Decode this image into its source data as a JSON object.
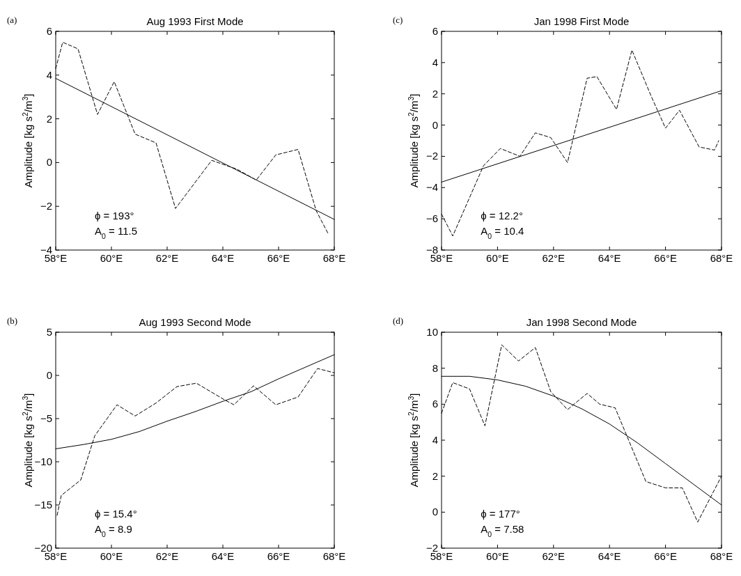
{
  "chart_data": [
    {
      "type": "line",
      "title": "Aug 1993 First Mode",
      "ylabel": "Amplitude [kg s$^{2}$/m$^{3}$]",
      "xlim": [
        58,
        68
      ],
      "xticks": [
        {
          "value": 58,
          "label": "58°E"
        },
        {
          "value": 60,
          "label": "60°E"
        },
        {
          "value": 62,
          "label": "62°E"
        },
        {
          "value": 64,
          "label": "64°E"
        },
        {
          "value": 66,
          "label": "66°E"
        },
        {
          "value": 68,
          "label": "68°E"
        }
      ],
      "ylim": [
        -4,
        6
      ],
      "yticks": [
        -4,
        -2,
        0,
        2,
        4,
        6
      ],
      "grid": false,
      "annotations": [
        "(a)",
        "ϕ = 193°",
        "A$_{0}$ = 11.5"
      ],
      "series": [
        {
          "color": "#000000",
          "line_style": "dashed",
          "x": [
            58.0,
            58.25,
            58.8,
            59.5,
            60.1,
            60.85,
            61.6,
            62.3,
            63.6,
            64.5,
            65.2,
            65.9,
            66.7,
            67.35,
            67.8
          ],
          "values": [
            4.3,
            5.5,
            5.2,
            2.2,
            3.7,
            1.3,
            0.9,
            -2.1,
            0.1,
            -0.3,
            -0.8,
            0.35,
            0.6,
            -2.2,
            -3.3
          ]
        },
        {
          "color": "#000000",
          "line_style": "solid",
          "x": [
            58,
            68
          ],
          "values": [
            3.85,
            -2.6
          ]
        }
      ]
    },
    {
      "type": "line",
      "title": "Jan 1998 First Mode",
      "ylabel": "Amplitude [kg s$^{2}$/m$^{3}$]",
      "xlim": [
        58,
        68
      ],
      "xticks": [
        {
          "value": 58,
          "label": "58°E"
        },
        {
          "value": 60,
          "label": "60°E"
        },
        {
          "value": 62,
          "label": "62°E"
        },
        {
          "value": 64,
          "label": "64°E"
        },
        {
          "value": 66,
          "label": "66°E"
        },
        {
          "value": 68,
          "label": "68°E"
        }
      ],
      "ylim": [
        -8,
        6
      ],
      "yticks": [
        -8,
        -6,
        -4,
        -2,
        0,
        2,
        4,
        6
      ],
      "grid": false,
      "annotations": [
        "(c)",
        "ϕ = 12.2°",
        "A$_{0}$ = 10.4"
      ],
      "series": [
        {
          "color": "#000000",
          "line_style": "dashed",
          "x": [
            58.0,
            58.4,
            59.5,
            60.1,
            60.8,
            61.35,
            61.9,
            62.5,
            63.2,
            63.55,
            64.25,
            64.8,
            65.5,
            66.0,
            66.5,
            67.2,
            67.75,
            67.9
          ],
          "values": [
            -5.7,
            -7.1,
            -2.6,
            -1.5,
            -2.0,
            -0.5,
            -0.8,
            -2.4,
            3.0,
            3.1,
            1.0,
            4.8,
            1.8,
            -0.2,
            0.95,
            -1.4,
            -1.6,
            -1.0
          ]
        },
        {
          "color": "#000000",
          "line_style": "solid",
          "x": [
            58,
            68
          ],
          "values": [
            -3.65,
            2.2
          ]
        }
      ]
    },
    {
      "type": "line",
      "title": "Aug 1993 Second Mode",
      "ylabel": "Amplitude [kg s$^{2}$/m$^{3}$]",
      "xlim": [
        58,
        68
      ],
      "xticks": [
        {
          "value": 58,
          "label": "58°E"
        },
        {
          "value": 60,
          "label": "60°E"
        },
        {
          "value": 62,
          "label": "62°E"
        },
        {
          "value": 64,
          "label": "64°E"
        },
        {
          "value": 66,
          "label": "66°E"
        },
        {
          "value": 68,
          "label": "68°E"
        }
      ],
      "ylim": [
        -20,
        5
      ],
      "yticks": [
        -20,
        -15,
        -10,
        -5,
        0,
        5
      ],
      "grid": false,
      "annotations": [
        "(b)",
        "ϕ = 15.4°",
        "A$_{0}$ = 8.9"
      ],
      "series": [
        {
          "color": "#000000",
          "line_style": "dashed",
          "x": [
            58.05,
            58.2,
            58.9,
            59.4,
            60.2,
            60.85,
            61.6,
            62.35,
            63.05,
            64.1,
            64.4,
            65.1,
            65.9,
            66.7,
            67.4,
            68.0
          ],
          "values": [
            -16.2,
            -13.9,
            -12.1,
            -7.0,
            -3.4,
            -4.7,
            -3.2,
            -1.3,
            -0.9,
            -2.9,
            -3.4,
            -1.2,
            -3.4,
            -2.5,
            0.8,
            0.3
          ]
        },
        {
          "color": "#000000",
          "line_style": "solid",
          "x": [
            58,
            59,
            60,
            61,
            62,
            63,
            64,
            65,
            66,
            67,
            68
          ],
          "values": [
            -8.5,
            -8.0,
            -7.4,
            -6.5,
            -5.3,
            -4.2,
            -3.0,
            -1.9,
            -0.4,
            1.0,
            2.4
          ]
        }
      ]
    },
    {
      "type": "line",
      "title": "Jan 1998 Second Mode",
      "ylabel": "Amplitude [kg s$^{2}$/m$^{3}$]",
      "xlim": [
        58,
        68
      ],
      "xticks": [
        {
          "value": 58,
          "label": "58°E"
        },
        {
          "value": 60,
          "label": "60°E"
        },
        {
          "value": 62,
          "label": "62°E"
        },
        {
          "value": 64,
          "label": "64°E"
        },
        {
          "value": 66,
          "label": "66°E"
        },
        {
          "value": 68,
          "label": "68°E"
        }
      ],
      "ylim": [
        -2,
        10
      ],
      "yticks": [
        -2,
        0,
        2,
        4,
        6,
        8,
        10
      ],
      "grid": false,
      "annotations": [
        "(d)",
        "ϕ = 177°",
        "A$_{0}$ = 7.58"
      ],
      "series": [
        {
          "color": "#000000",
          "line_style": "dashed",
          "x": [
            58.0,
            58.4,
            59.0,
            59.55,
            60.15,
            60.75,
            61.35,
            61.9,
            62.5,
            63.2,
            63.65,
            64.2,
            65.3,
            66.0,
            66.6,
            67.15,
            68.0
          ],
          "values": [
            5.5,
            7.2,
            6.85,
            4.8,
            9.3,
            8.4,
            9.15,
            6.7,
            5.7,
            6.6,
            6.0,
            5.8,
            1.7,
            1.35,
            1.35,
            -0.55,
            2.0
          ]
        },
        {
          "color": "#000000",
          "line_style": "solid",
          "x": [
            58,
            59,
            60,
            61,
            62,
            63,
            64,
            65,
            66,
            67,
            68
          ],
          "values": [
            7.55,
            7.55,
            7.35,
            7.0,
            6.45,
            5.75,
            4.9,
            3.85,
            2.7,
            1.55,
            0.4
          ]
        }
      ]
    }
  ]
}
